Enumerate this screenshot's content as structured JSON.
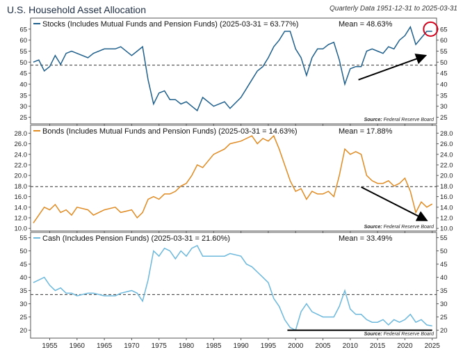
{
  "header": {
    "title": "U.S. Household Asset Allocation",
    "subtitle": "Quarterly Data 1951-12-31 to 2025-03-31"
  },
  "x_ticks": [
    1955,
    1960,
    1965,
    1970,
    1975,
    1980,
    1985,
    1990,
    1995,
    2000,
    2005,
    2010,
    2015,
    2020,
    2025
  ],
  "chart_data": [
    {
      "type": "line",
      "legend_label": "Stocks (Includes Mutual Funds and Pension Funds) (2025-03-31 = 63.77%)",
      "mean_label": "Mean = 48.63%",
      "source_label": "Source:",
      "source_name": "Federal Reserve Board",
      "color": "#1f5f8b",
      "mean": 48.63,
      "ylim": [
        22,
        70
      ],
      "yticks": [
        25,
        30,
        35,
        40,
        45,
        50,
        55,
        60,
        65
      ],
      "annotation": {
        "type": "arrow",
        "from": [
          2011.5,
          42
        ],
        "to": [
          2023.8,
          53
        ]
      },
      "highlight_circle": {
        "x": 2024.7,
        "y": 65
      },
      "x": [
        1952,
        1953,
        1954,
        1955,
        1956,
        1957,
        1958,
        1959,
        1960,
        1962,
        1963,
        1965,
        1967,
        1968,
        1970,
        1971,
        1972,
        1973,
        1974,
        1975,
        1976,
        1977,
        1978,
        1979,
        1980,
        1981,
        1982,
        1983,
        1985,
        1987,
        1988,
        1990,
        1991,
        1992,
        1993,
        1994,
        1995,
        1996,
        1997,
        1998,
        1999,
        2000,
        2001,
        2002,
        2003,
        2004,
        2005,
        2006,
        2007,
        2008,
        2009,
        2010,
        2011,
        2012,
        2013,
        2014,
        2015,
        2016,
        2017,
        2018,
        2019,
        2020,
        2021,
        2022,
        2023,
        2024,
        2025
      ],
      "values": [
        50,
        51,
        46,
        48,
        53,
        49,
        54,
        55,
        54,
        52,
        54,
        56,
        56,
        57,
        53,
        55,
        57,
        42,
        31,
        36,
        37,
        33,
        33,
        31,
        32,
        30,
        28,
        34,
        30,
        32,
        29,
        34,
        38,
        42,
        46,
        48,
        52,
        57,
        60,
        64,
        64,
        56,
        52,
        44,
        52,
        56,
        56,
        58,
        59,
        51,
        40,
        47,
        48,
        48,
        55,
        56,
        55,
        54,
        57,
        56,
        60,
        62,
        66,
        58,
        61,
        64,
        64
      ]
    },
    {
      "type": "line",
      "legend_label": "Bonds (Includes Mutual Funds and Pension Funds) (2025-03-31 = 14.63%)",
      "mean_label": "Mean = 17.88%",
      "source_label": "Source:",
      "source_name": "Federal Reserve Board",
      "color": "#e08a22",
      "mean": 17.88,
      "ylim": [
        9.5,
        29.5
      ],
      "yticks": [
        10.0,
        12.0,
        14.0,
        16.0,
        18.0,
        20.0,
        22.0,
        24.0,
        26.0,
        28.0
      ],
      "annotation": {
        "type": "arrow",
        "from": [
          2012,
          17.8
        ],
        "to": [
          2024,
          11.5
        ]
      },
      "x": [
        1952,
        1953,
        1954,
        1955,
        1956,
        1957,
        1958,
        1959,
        1960,
        1962,
        1963,
        1965,
        1967,
        1968,
        1970,
        1971,
        1972,
        1973,
        1974,
        1975,
        1976,
        1977,
        1978,
        1979,
        1980,
        1981,
        1982,
        1983,
        1985,
        1987,
        1988,
        1990,
        1991,
        1992,
        1993,
        1994,
        1995,
        1996,
        1997,
        1998,
        1999,
        2000,
        2001,
        2002,
        2003,
        2004,
        2005,
        2006,
        2007,
        2008,
        2009,
        2010,
        2011,
        2012,
        2013,
        2014,
        2015,
        2016,
        2017,
        2018,
        2019,
        2020,
        2021,
        2022,
        2023,
        2024,
        2025
      ],
      "values": [
        11,
        12.5,
        14,
        13.5,
        14.5,
        13,
        13.5,
        12.5,
        14,
        13.5,
        12.5,
        13.5,
        14,
        13,
        13.5,
        12,
        13,
        15.5,
        16,
        15.5,
        16.5,
        16.5,
        17,
        18,
        18.5,
        20,
        22,
        21.5,
        24,
        25,
        26,
        26.5,
        27,
        27.5,
        26,
        27,
        26.5,
        27.5,
        25,
        22,
        19,
        17,
        17.5,
        15.5,
        17,
        16.5,
        16.5,
        17,
        16,
        20,
        25,
        24,
        24.5,
        24,
        20,
        19,
        18.5,
        18.5,
        19,
        18,
        18.5,
        19.5,
        17,
        13,
        15,
        14,
        14.6
      ]
    },
    {
      "type": "line",
      "legend_label": "Cash (Includes Pension Funds) (2025-03-31 = 21.60%)",
      "mean_label": "Mean = 33.49%",
      "source_label": "Source:",
      "source_name": "Federal Reserve Board",
      "color": "#6cb8dc",
      "mean": 33.49,
      "ylim": [
        17,
        57
      ],
      "yticks": [
        20,
        25,
        30,
        35,
        40,
        45,
        50,
        55
      ],
      "annotation": {
        "type": "hline",
        "from": [
          1998.5,
          20
        ],
        "to": [
          2025,
          20
        ]
      },
      "x": [
        1952,
        1953,
        1954,
        1955,
        1956,
        1957,
        1958,
        1959,
        1960,
        1962,
        1963,
        1965,
        1967,
        1968,
        1970,
        1971,
        1972,
        1973,
        1974,
        1975,
        1976,
        1977,
        1978,
        1979,
        1980,
        1981,
        1982,
        1983,
        1985,
        1987,
        1988,
        1990,
        1991,
        1992,
        1993,
        1994,
        1995,
        1996,
        1997,
        1998,
        1999,
        2000,
        2001,
        2002,
        2003,
        2004,
        2005,
        2006,
        2007,
        2008,
        2009,
        2010,
        2011,
        2012,
        2013,
        2014,
        2015,
        2016,
        2017,
        2018,
        2019,
        2020,
        2021,
        2022,
        2023,
        2024,
        2025
      ],
      "values": [
        38,
        39,
        40,
        37,
        35,
        36,
        34,
        34,
        33,
        34,
        34,
        33,
        33,
        34,
        35,
        34,
        31,
        39,
        50,
        48,
        51,
        50,
        47,
        50,
        48,
        51,
        52,
        48,
        48,
        48,
        49,
        48,
        45,
        44,
        42,
        40,
        38,
        32,
        29,
        24,
        21,
        20,
        27,
        30,
        27,
        26,
        25,
        25,
        25,
        29,
        35,
        28,
        26,
        26,
        24,
        23,
        23,
        24,
        22,
        24,
        23,
        24,
        26,
        23,
        24,
        22,
        21.6
      ]
    }
  ]
}
